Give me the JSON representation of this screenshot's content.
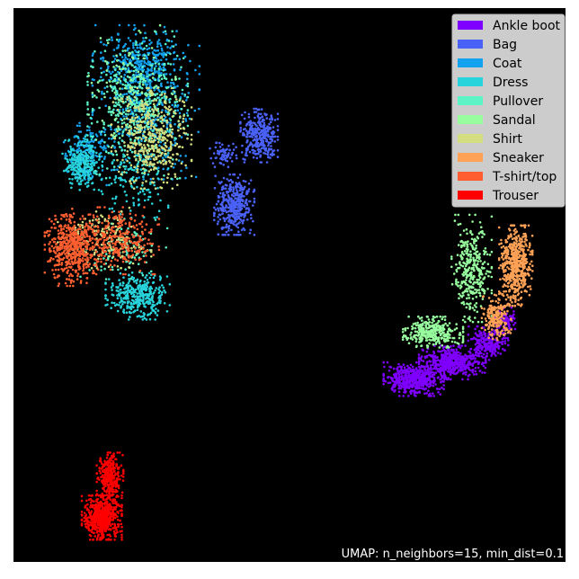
{
  "chart_data": {
    "type": "scatter",
    "title": "",
    "xlabel": "",
    "ylabel": "",
    "axes_ticks": "none",
    "background": "#000000",
    "annotation": "UMAP: n_neighbors=15, min_dist=0.1",
    "legend_position": "top-right",
    "xlim": [
      0,
      100
    ],
    "ylim": [
      0,
      100
    ],
    "series": [
      {
        "name": "Ankle boot",
        "color": "#7f00ff",
        "clusters": [
          {
            "cx": 72.5,
            "cy": 33.0,
            "rx": 4.5,
            "ry": 2.5,
            "n": 520
          },
          {
            "cx": 79.5,
            "cy": 36.0,
            "rx": 5.0,
            "ry": 2.5,
            "n": 480
          },
          {
            "cx": 86.0,
            "cy": 39.5,
            "rx": 3.0,
            "ry": 2.5,
            "n": 220
          },
          {
            "cx": 89.5,
            "cy": 43.5,
            "rx": 1.8,
            "ry": 2.0,
            "n": 80
          }
        ]
      },
      {
        "name": "Bag",
        "color": "#4a61f7",
        "clusters": [
          {
            "cx": 44.5,
            "cy": 77.0,
            "rx": 2.8,
            "ry": 4.0,
            "n": 330
          },
          {
            "cx": 40.0,
            "cy": 64.5,
            "rx": 3.0,
            "ry": 4.5,
            "n": 380
          },
          {
            "cx": 38.0,
            "cy": 73.5,
            "rx": 2.0,
            "ry": 1.8,
            "n": 70
          }
        ]
      },
      {
        "name": "Coat",
        "color": "#12a2f0",
        "clusters": [
          {
            "cx": 24.0,
            "cy": 83.0,
            "rx": 8.0,
            "ry": 11.5,
            "n": 520
          },
          {
            "cx": 13.5,
            "cy": 74.0,
            "rx": 4.0,
            "ry": 5.0,
            "n": 160
          },
          {
            "cx": 22.5,
            "cy": 90.5,
            "rx": 5.5,
            "ry": 4.0,
            "n": 200
          }
        ]
      },
      {
        "name": "Dress",
        "color": "#28d4dc",
        "clusters": [
          {
            "cx": 12.5,
            "cy": 72.0,
            "rx": 3.0,
            "ry": 4.0,
            "n": 260
          },
          {
            "cx": 22.5,
            "cy": 48.0,
            "rx": 4.8,
            "ry": 3.5,
            "n": 360
          },
          {
            "cx": 22.0,
            "cy": 70.0,
            "rx": 5.0,
            "ry": 6.5,
            "n": 160
          }
        ]
      },
      {
        "name": "Pullover",
        "color": "#5cf4c6",
        "clusters": [
          {
            "cx": 22.5,
            "cy": 82.5,
            "rx": 7.5,
            "ry": 11.0,
            "n": 480
          },
          {
            "cx": 20.0,
            "cy": 56.5,
            "rx": 6.5,
            "ry": 4.5,
            "n": 110
          }
        ]
      },
      {
        "name": "Sandal",
        "color": "#97fd9e",
        "clusters": [
          {
            "cx": 76.0,
            "cy": 41.5,
            "rx": 4.5,
            "ry": 2.3,
            "n": 320
          },
          {
            "cx": 83.0,
            "cy": 53.0,
            "rx": 3.0,
            "ry": 8.0,
            "n": 330
          },
          {
            "cx": 21.5,
            "cy": 86.0,
            "rx": 6.5,
            "ry": 9.0,
            "n": 120
          }
        ]
      },
      {
        "name": "Shirt",
        "color": "#d4dd80",
        "clusters": [
          {
            "cx": 25.0,
            "cy": 76.5,
            "rx": 6.0,
            "ry": 7.5,
            "n": 420
          },
          {
            "cx": 16.5,
            "cy": 58.5,
            "rx": 7.0,
            "ry": 4.5,
            "n": 170
          }
        ]
      },
      {
        "name": "Sneaker",
        "color": "#ffa256",
        "clusters": [
          {
            "cx": 91.0,
            "cy": 53.5,
            "rx": 2.5,
            "ry": 6.0,
            "n": 520
          },
          {
            "cx": 87.5,
            "cy": 44.0,
            "rx": 2.2,
            "ry": 3.5,
            "n": 200
          }
        ]
      },
      {
        "name": "T-shirt/top",
        "color": "#ff5f30",
        "clusters": [
          {
            "cx": 10.5,
            "cy": 56.5,
            "rx": 4.0,
            "ry": 5.5,
            "n": 500
          },
          {
            "cx": 18.5,
            "cy": 58.0,
            "rx": 6.5,
            "ry": 5.0,
            "n": 300
          }
        ]
      },
      {
        "name": "Trouser",
        "color": "#ff0000",
        "clusters": [
          {
            "cx": 16.0,
            "cy": 8.0,
            "rx": 3.0,
            "ry": 3.3,
            "n": 620
          },
          {
            "cx": 17.5,
            "cy": 15.5,
            "rx": 2.0,
            "ry": 3.5,
            "n": 300
          }
        ]
      }
    ]
  }
}
